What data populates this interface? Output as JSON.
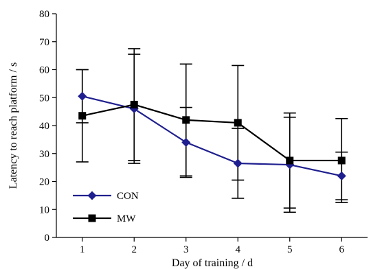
{
  "chart_data": {
    "type": "line",
    "xlabel": "Day of training / d",
    "ylabel": "Latency to reach platform / s",
    "x": [
      1,
      2,
      3,
      4,
      5,
      6
    ],
    "xlim": [
      0.5,
      6.5
    ],
    "ylim": [
      0,
      80
    ],
    "yticks": [
      0,
      10,
      20,
      30,
      40,
      50,
      60,
      70,
      80
    ],
    "grid": false,
    "legend_position": "bottom-left",
    "series": [
      {
        "name": "CON",
        "marker": "diamond",
        "color": "#1f1f8f",
        "values": [
          50.5,
          46,
          34,
          26.5,
          26,
          22
        ],
        "error": [
          9.5,
          19.5,
          12.5,
          12.5,
          17,
          8.5
        ]
      },
      {
        "name": "MW",
        "marker": "square",
        "color": "#000000",
        "values": [
          43.5,
          47.5,
          42,
          41,
          27.5,
          27.5
        ],
        "error": [
          16.5,
          20,
          20,
          20.5,
          17,
          15
        ]
      }
    ]
  }
}
